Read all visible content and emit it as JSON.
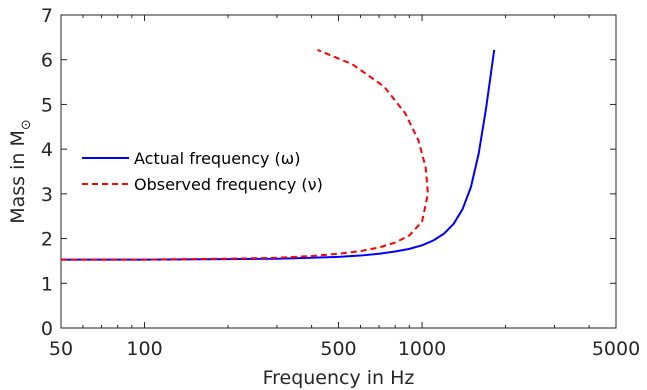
{
  "chart_data": {
    "type": "line",
    "xlabel": "Frequency in Hz",
    "ylabel_main": "Mass in M",
    "ylabel_sub": "⊙",
    "x_scale": "log",
    "xlim": [
      50,
      5000
    ],
    "ylim": [
      0,
      7
    ],
    "xticks": [
      50,
      100,
      500,
      1000,
      5000
    ],
    "xtick_labels": [
      "50",
      "100",
      "500",
      "1000",
      "5000"
    ],
    "yticks": [
      0,
      1,
      2,
      3,
      4,
      5,
      6,
      7
    ],
    "ytick_labels": [
      "0",
      "1",
      "2",
      "3",
      "4",
      "5",
      "6",
      "7"
    ],
    "grid": false,
    "legend_position": "middle-left",
    "series": [
      {
        "name": "Actual frequency (ω)",
        "color": "#0000ff",
        "style": "solid",
        "points": [
          [
            50,
            1.53
          ],
          [
            100,
            1.53
          ],
          [
            200,
            1.54
          ],
          [
            300,
            1.55
          ],
          [
            400,
            1.57
          ],
          [
            500,
            1.59
          ],
          [
            600,
            1.62
          ],
          [
            700,
            1.66
          ],
          [
            800,
            1.71
          ],
          [
            900,
            1.77
          ],
          [
            1000,
            1.85
          ],
          [
            1100,
            1.96
          ],
          [
            1200,
            2.11
          ],
          [
            1300,
            2.33
          ],
          [
            1400,
            2.66
          ],
          [
            1500,
            3.15
          ],
          [
            1600,
            3.9
          ],
          [
            1700,
            4.9
          ],
          [
            1820,
            6.22
          ]
        ]
      },
      {
        "name": "Observed frequency (ν)",
        "color": "#ff0000",
        "style": "dashed",
        "points": [
          [
            50,
            1.53
          ],
          [
            100,
            1.53
          ],
          [
            200,
            1.55
          ],
          [
            300,
            1.57
          ],
          [
            400,
            1.61
          ],
          [
            500,
            1.66
          ],
          [
            600,
            1.72
          ],
          [
            700,
            1.8
          ],
          [
            800,
            1.91
          ],
          [
            900,
            2.07
          ],
          [
            1000,
            2.38
          ],
          [
            1050,
            3.0
          ],
          [
            1030,
            3.6
          ],
          [
            970,
            4.2
          ],
          [
            870,
            4.8
          ],
          [
            730,
            5.4
          ],
          [
            560,
            5.9
          ],
          [
            420,
            6.22
          ]
        ]
      }
    ]
  }
}
